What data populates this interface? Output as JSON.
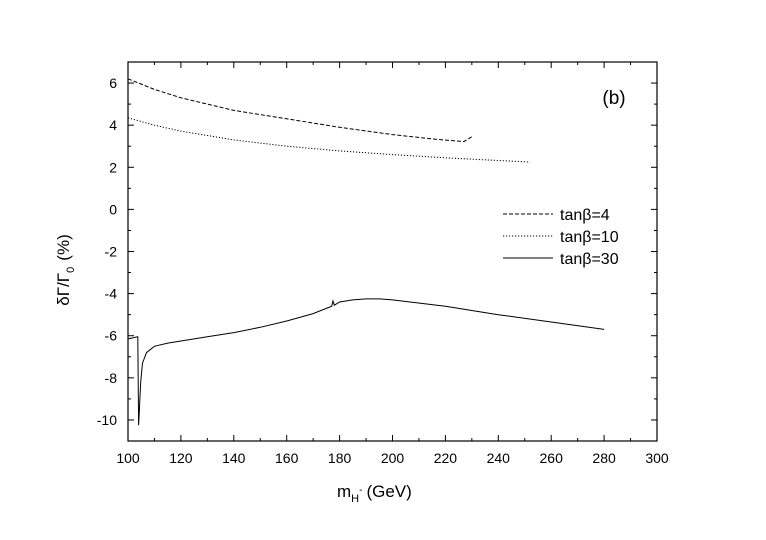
{
  "chart_data": {
    "type": "line",
    "panel_label": "(b)",
    "xlabel": {
      "main": "m",
      "sub": "H",
      "sup": "-",
      "unit": "(GeV)"
    },
    "ylabel": {
      "main": "δΓ/Γ",
      "sub": "0",
      "unit": "(%)"
    },
    "xlim": [
      100,
      300
    ],
    "ylim": [
      -11,
      7
    ],
    "xticks": [
      100,
      120,
      140,
      160,
      180,
      200,
      220,
      240,
      260,
      280,
      300
    ],
    "yticks": [
      6,
      4,
      2,
      0,
      -2,
      -4,
      -6,
      -8,
      -10
    ],
    "grid": false,
    "legend_position": "right",
    "series": [
      {
        "name": "tanβ=4",
        "style": "dashed",
        "x": [
          100,
          110,
          120,
          140,
          160,
          180,
          200,
          215,
          227,
          228,
          230
        ],
        "y": [
          6.2,
          5.7,
          5.3,
          4.7,
          4.3,
          3.9,
          3.55,
          3.35,
          3.22,
          3.3,
          3.45
        ]
      },
      {
        "name": "tanβ=10",
        "style": "dotted",
        "x": [
          100,
          110,
          120,
          140,
          160,
          180,
          200,
          220,
          240,
          252
        ],
        "y": [
          4.35,
          4.0,
          3.72,
          3.3,
          3.0,
          2.78,
          2.6,
          2.45,
          2.32,
          2.25
        ]
      },
      {
        "name": "tanβ=30",
        "style": "solid",
        "x": [
          100,
          103.7,
          104.0,
          104.3,
          104.8,
          105.5,
          107,
          110,
          115,
          120,
          130,
          140,
          150,
          160,
          170,
          177,
          177.5,
          178,
          180,
          185,
          190,
          195,
          200,
          220,
          240,
          260,
          280
        ],
        "y": [
          -6.15,
          -6.05,
          -10.25,
          -9.5,
          -8.2,
          -7.3,
          -6.8,
          -6.5,
          -6.35,
          -6.25,
          -6.05,
          -5.85,
          -5.6,
          -5.3,
          -4.95,
          -4.6,
          -4.35,
          -4.55,
          -4.4,
          -4.3,
          -4.25,
          -4.25,
          -4.3,
          -4.6,
          -5.0,
          -5.35,
          -5.7
        ]
      }
    ]
  }
}
